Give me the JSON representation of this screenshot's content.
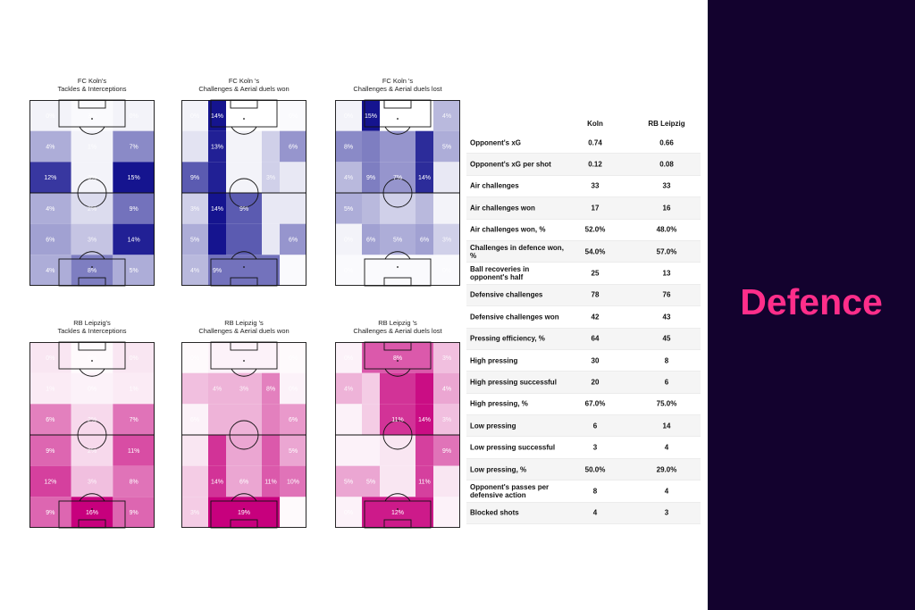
{
  "section_title": "Defence",
  "colors": {
    "sidebar_bg": "#13022e",
    "title": "#ff2e8a",
    "koln_scale": "#0b148f",
    "leipzig_scale": "#c7007d"
  },
  "chart_data": [
    {
      "type": "heatmap",
      "title": "FC Koln's\nTackles & Interceptions",
      "team": "koln",
      "grid": "3 columns x 6 rows, own goal at bottom",
      "row_heights": [
        1,
        1,
        1,
        1,
        1,
        1
      ],
      "col_widths": [
        1,
        1,
        1
      ],
      "values": [
        [
          null,
          null,
          null
        ],
        [
          4,
          null,
          7
        ],
        [
          12,
          null,
          15
        ],
        [
          null,
          null,
          9
        ],
        [
          6,
          null,
          14
        ],
        [
          null,
          8,
          5
        ]
      ],
      "labels": [
        [
          "0%",
          "3%",
          "0%"
        ],
        [
          "4%",
          "1%",
          "7%"
        ],
        [
          "12%",
          "3%",
          "15%"
        ],
        [
          "4%",
          "2%",
          "9%"
        ],
        [
          "6%",
          "3%",
          "14%"
        ],
        [
          "4%",
          "8%",
          "5%"
        ]
      ],
      "intensity": [
        [
          0.05,
          0.02,
          0.05
        ],
        [
          0.35,
          0.05,
          0.5
        ],
        [
          0.85,
          0.05,
          1.0
        ],
        [
          0.35,
          0.15,
          0.6
        ],
        [
          0.4,
          0.25,
          0.95
        ],
        [
          0.35,
          0.55,
          0.35
        ]
      ]
    },
    {
      "type": "heatmap",
      "title": "FC Koln 's\nChallenges & Aerial duels won",
      "team": "koln",
      "grid": "5 columns x 6 rows",
      "row_heights": [
        1,
        1,
        1,
        1,
        1,
        1
      ],
      "col_widths": [
        0.6,
        0.4,
        0.8,
        0.4,
        0.6
      ],
      "values": [
        [
          null,
          14,
          null,
          null,
          null
        ],
        [
          null,
          13,
          null,
          null,
          6
        ],
        [
          9,
          13,
          null,
          null,
          null
        ],
        [
          null,
          14,
          9,
          null,
          null
        ],
        [
          5,
          14,
          9,
          null,
          6
        ],
        [
          4,
          9,
          9,
          9,
          null
        ]
      ],
      "labels": [
        [
          "0%",
          "14%",
          "",
          "",
          "0%"
        ],
        [
          "",
          "13%",
          "",
          "",
          "6%"
        ],
        [
          "9%",
          "",
          "",
          "3%",
          ""
        ],
        [
          "3%",
          "14%",
          "9%",
          "",
          ""
        ],
        [
          "5%",
          "",
          "",
          "",
          "6%"
        ],
        [
          "4%",
          "9%",
          "",
          "",
          ""
        ]
      ],
      "intensity": [
        [
          0.05,
          1.0,
          0.0,
          0.0,
          0.02
        ],
        [
          0.12,
          0.95,
          0.05,
          0.2,
          0.45
        ],
        [
          0.7,
          0.95,
          0.05,
          0.2,
          0.1
        ],
        [
          0.2,
          1.0,
          0.7,
          0.1,
          0.1
        ],
        [
          0.35,
          1.0,
          0.7,
          0.1,
          0.45
        ],
        [
          0.3,
          0.6,
          0.6,
          0.6,
          0.02
        ]
      ]
    },
    {
      "type": "heatmap",
      "title": "FC Koln 's\nChallenges & Aerial duels lost",
      "team": "koln",
      "grid": "5 columns x 6 rows",
      "row_heights": [
        1,
        1,
        1,
        1,
        1,
        1
      ],
      "col_widths": [
        0.6,
        0.4,
        0.8,
        0.4,
        0.6
      ],
      "values": [
        [
          null,
          15,
          null,
          null,
          4
        ],
        [
          8,
          null,
          null,
          null,
          5
        ],
        [
          4,
          9,
          7,
          14,
          null
        ],
        [
          5,
          null,
          null,
          null,
          null
        ],
        [
          null,
          6,
          5,
          6,
          null
        ],
        [
          null,
          null,
          null,
          null,
          null
        ]
      ],
      "labels": [
        [
          "0%",
          "15%",
          "",
          "",
          "4%"
        ],
        [
          "8%",
          "",
          "",
          "",
          "5%"
        ],
        [
          "4%",
          "9%",
          "7%",
          "14%",
          ""
        ],
        [
          "5%",
          "",
          "",
          "",
          ""
        ],
        [
          "0%",
          "6%",
          "5%",
          "6%",
          "3%"
        ],
        [
          "0%",
          "",
          "",
          "",
          "0%"
        ]
      ],
      "intensity": [
        [
          0.05,
          1.0,
          0.0,
          0.0,
          0.3
        ],
        [
          0.5,
          0.55,
          0.45,
          0.9,
          0.35
        ],
        [
          0.3,
          0.55,
          0.45,
          0.9,
          0.1
        ],
        [
          0.35,
          0.3,
          0.2,
          0.3,
          0.05
        ],
        [
          0.05,
          0.4,
          0.35,
          0.4,
          0.2
        ],
        [
          0.02,
          0.02,
          0.02,
          0.02,
          0.02
        ]
      ]
    },
    {
      "type": "heatmap",
      "title": "RB Leipzig's\nTackles & Interceptions",
      "team": "leipzig",
      "grid": "3 columns x 6 rows",
      "row_heights": [
        1,
        1,
        1,
        1,
        1,
        1
      ],
      "col_widths": [
        1,
        1,
        1
      ],
      "values": [
        [
          null,
          null,
          null
        ],
        [
          null,
          null,
          null
        ],
        [
          6,
          null,
          7
        ],
        [
          9,
          null,
          11
        ],
        [
          12,
          null,
          8
        ],
        [
          9,
          16,
          9
        ]
      ],
      "labels": [
        [
          "0%",
          "0%",
          "0%"
        ],
        [
          "1%",
          "0%",
          "1%"
        ],
        [
          "6%",
          "2%",
          "7%"
        ],
        [
          "9%",
          "2%",
          "11%"
        ],
        [
          "12%",
          "3%",
          "8%"
        ],
        [
          "9%",
          "16%",
          "9%"
        ]
      ],
      "intensity": [
        [
          0.1,
          0.02,
          0.1
        ],
        [
          0.08,
          0.05,
          0.08
        ],
        [
          0.5,
          0.15,
          0.55
        ],
        [
          0.6,
          0.15,
          0.7
        ],
        [
          0.75,
          0.25,
          0.55
        ],
        [
          0.6,
          1.0,
          0.6
        ]
      ]
    },
    {
      "type": "heatmap",
      "title": "RB Leipzig 's\nChallenges & Aerial duels won",
      "team": "leipzig",
      "grid": "5 columns x 6 rows",
      "row_heights": [
        1,
        1,
        1,
        1,
        1,
        1
      ],
      "col_widths": [
        0.6,
        0.4,
        0.8,
        0.4,
        0.6
      ],
      "values": [
        [
          null,
          null,
          null,
          null,
          null
        ],
        [
          null,
          null,
          null,
          8,
          null
        ],
        [
          6,
          null,
          null,
          null,
          6
        ],
        [
          null,
          14,
          6,
          11,
          5
        ],
        [
          null,
          14,
          6,
          11,
          10
        ],
        [
          null,
          19,
          19,
          19,
          null
        ]
      ],
      "labels": [
        [
          "0%",
          "",
          "",
          "",
          "0%"
        ],
        [
          "",
          "4%",
          "3%",
          "8%",
          "0%"
        ],
        [
          "6%",
          "",
          "",
          "",
          "6%"
        ],
        [
          "",
          "",
          "",
          "",
          "5%"
        ],
        [
          "",
          "14%",
          "6%",
          "11%",
          "10%"
        ],
        [
          "3%",
          "",
          "19%",
          "",
          ""
        ]
      ],
      "intensity": [
        [
          0.02,
          0.05,
          0.05,
          0.05,
          0.02
        ],
        [
          0.25,
          0.3,
          0.3,
          0.5,
          0.05
        ],
        [
          0.05,
          0.3,
          0.3,
          0.5,
          0.4
        ],
        [
          0.1,
          0.8,
          0.35,
          0.65,
          0.35
        ],
        [
          0.2,
          0.8,
          0.35,
          0.65,
          0.55
        ],
        [
          0.2,
          1.0,
          1.0,
          1.0,
          0.02
        ]
      ]
    },
    {
      "type": "heatmap",
      "title": "RB Leipzig 's\nChallenges & Aerial duels lost",
      "team": "leipzig",
      "grid": "5 columns x 6 rows",
      "row_heights": [
        1,
        1,
        1,
        1,
        1,
        1
      ],
      "col_widths": [
        0.6,
        0.4,
        0.8,
        0.4,
        0.6
      ],
      "values": [
        [
          null,
          8,
          null,
          null,
          null
        ],
        [
          4,
          null,
          11,
          14,
          4
        ],
        [
          null,
          null,
          11,
          14,
          null
        ],
        [
          null,
          null,
          null,
          11,
          9
        ],
        [
          5,
          5,
          null,
          11,
          null
        ],
        [
          null,
          12,
          12,
          12,
          null
        ]
      ],
      "labels": [
        [
          "0%",
          "",
          "8%",
          "",
          "3%"
        ],
        [
          "4%",
          "",
          "",
          "",
          "4%"
        ],
        [
          "",
          "",
          "11%",
          "14%",
          "3%"
        ],
        [
          "",
          "",
          "",
          "",
          "9%"
        ],
        [
          "5%",
          "5%",
          "",
          "11%",
          ""
        ],
        [
          "0%",
          "",
          "12%",
          "",
          ""
        ]
      ],
      "intensity": [
        [
          0.05,
          0.65,
          0.65,
          0.65,
          0.25
        ],
        [
          0.3,
          0.2,
          0.8,
          0.95,
          0.35
        ],
        [
          0.05,
          0.2,
          0.8,
          0.95,
          0.25
        ],
        [
          0.05,
          0.05,
          0.1,
          0.75,
          0.55
        ],
        [
          0.35,
          0.35,
          0.1,
          0.75,
          0.1
        ],
        [
          0.05,
          0.9,
          0.9,
          0.9,
          0.05
        ]
      ]
    }
  ],
  "stats_table": {
    "headers": [
      "Koln",
      "RB Leipzig"
    ],
    "rows": [
      {
        "label": "Opponent's xG",
        "koln": "0.74",
        "leipzig": "0.66"
      },
      {
        "label": "Opponent's xG per shot",
        "koln": "0.12",
        "leipzig": "0.08"
      },
      {
        "label": "Air challenges",
        "koln": "33",
        "leipzig": "33"
      },
      {
        "label": "Air challenges won",
        "koln": "17",
        "leipzig": "16"
      },
      {
        "label": "Air challenges won, %",
        "koln": "52.0%",
        "leipzig": "48.0%"
      },
      {
        "label": "Challenges in defence won, %",
        "koln": "54.0%",
        "leipzig": "57.0%"
      },
      {
        "label": "Ball recoveries in opponent's half",
        "koln": "25",
        "leipzig": "13"
      },
      {
        "label": "Defensive challenges",
        "koln": "78",
        "leipzig": "76"
      },
      {
        "label": "Defensive challenges won",
        "koln": "42",
        "leipzig": "43"
      },
      {
        "label": "Pressing efficiency, %",
        "koln": "64",
        "leipzig": "45"
      },
      {
        "label": "High pressing",
        "koln": "30",
        "leipzig": "8"
      },
      {
        "label": "High pressing successful",
        "koln": "20",
        "leipzig": "6"
      },
      {
        "label": "High pressing, %",
        "koln": "67.0%",
        "leipzig": "75.0%"
      },
      {
        "label": "Low pressing",
        "koln": "6",
        "leipzig": "14"
      },
      {
        "label": "Low pressing successful",
        "koln": "3",
        "leipzig": "4"
      },
      {
        "label": "Low pressing, %",
        "koln": "50.0%",
        "leipzig": "29.0%"
      },
      {
        "label": "Opponent's passes per defensive action",
        "koln": "8",
        "leipzig": "4"
      },
      {
        "label": "Blocked shots",
        "koln": "4",
        "leipzig": "3"
      }
    ]
  }
}
